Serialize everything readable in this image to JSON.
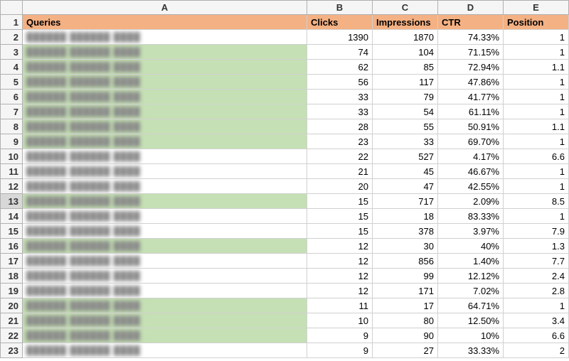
{
  "colors": {
    "header_bg": "#f4b183",
    "highlight_bg": "#c5e0b4",
    "grid_line": "#d0d0d0",
    "row_col_hdr_bg": "#f5f5f5",
    "row_col_hdr_border": "#b0b0b0"
  },
  "column_letters": [
    "A",
    "B",
    "C",
    "D",
    "E"
  ],
  "selected_row": 13,
  "headers": {
    "A": "Queries",
    "B": "Clicks",
    "C": "Impressions",
    "D": "CTR",
    "E": "Position"
  },
  "rows": [
    {
      "n": 2,
      "hl": false,
      "clicks": "1390",
      "impr": "1870",
      "ctr": "74.33%",
      "pos": "1"
    },
    {
      "n": 3,
      "hl": true,
      "clicks": "74",
      "impr": "104",
      "ctr": "71.15%",
      "pos": "1"
    },
    {
      "n": 4,
      "hl": true,
      "clicks": "62",
      "impr": "85",
      "ctr": "72.94%",
      "pos": "1.1"
    },
    {
      "n": 5,
      "hl": true,
      "clicks": "56",
      "impr": "117",
      "ctr": "47.86%",
      "pos": "1"
    },
    {
      "n": 6,
      "hl": true,
      "clicks": "33",
      "impr": "79",
      "ctr": "41.77%",
      "pos": "1"
    },
    {
      "n": 7,
      "hl": true,
      "clicks": "33",
      "impr": "54",
      "ctr": "61.11%",
      "pos": "1"
    },
    {
      "n": 8,
      "hl": true,
      "clicks": "28",
      "impr": "55",
      "ctr": "50.91%",
      "pos": "1.1"
    },
    {
      "n": 9,
      "hl": true,
      "clicks": "23",
      "impr": "33",
      "ctr": "69.70%",
      "pos": "1"
    },
    {
      "n": 10,
      "hl": false,
      "clicks": "22",
      "impr": "527",
      "ctr": "4.17%",
      "pos": "6.6"
    },
    {
      "n": 11,
      "hl": false,
      "clicks": "21",
      "impr": "45",
      "ctr": "46.67%",
      "pos": "1"
    },
    {
      "n": 12,
      "hl": false,
      "clicks": "20",
      "impr": "47",
      "ctr": "42.55%",
      "pos": "1"
    },
    {
      "n": 13,
      "hl": true,
      "clicks": "15",
      "impr": "717",
      "ctr": "2.09%",
      "pos": "8.5"
    },
    {
      "n": 14,
      "hl": false,
      "clicks": "15",
      "impr": "18",
      "ctr": "83.33%",
      "pos": "1"
    },
    {
      "n": 15,
      "hl": false,
      "clicks": "15",
      "impr": "378",
      "ctr": "3.97%",
      "pos": "7.9"
    },
    {
      "n": 16,
      "hl": true,
      "clicks": "12",
      "impr": "30",
      "ctr": "40%",
      "pos": "1.3"
    },
    {
      "n": 17,
      "hl": false,
      "clicks": "12",
      "impr": "856",
      "ctr": "1.40%",
      "pos": "7.7"
    },
    {
      "n": 18,
      "hl": false,
      "clicks": "12",
      "impr": "99",
      "ctr": "12.12%",
      "pos": "2.4"
    },
    {
      "n": 19,
      "hl": false,
      "clicks": "12",
      "impr": "171",
      "ctr": "7.02%",
      "pos": "2.8"
    },
    {
      "n": 20,
      "hl": true,
      "clicks": "11",
      "impr": "17",
      "ctr": "64.71%",
      "pos": "1"
    },
    {
      "n": 21,
      "hl": true,
      "clicks": "10",
      "impr": "80",
      "ctr": "12.50%",
      "pos": "3.4"
    },
    {
      "n": 22,
      "hl": true,
      "clicks": "9",
      "impr": "90",
      "ctr": "10%",
      "pos": "6.6"
    },
    {
      "n": 23,
      "hl": false,
      "clicks": "9",
      "impr": "27",
      "ctr": "33.33%",
      "pos": "2"
    }
  ]
}
